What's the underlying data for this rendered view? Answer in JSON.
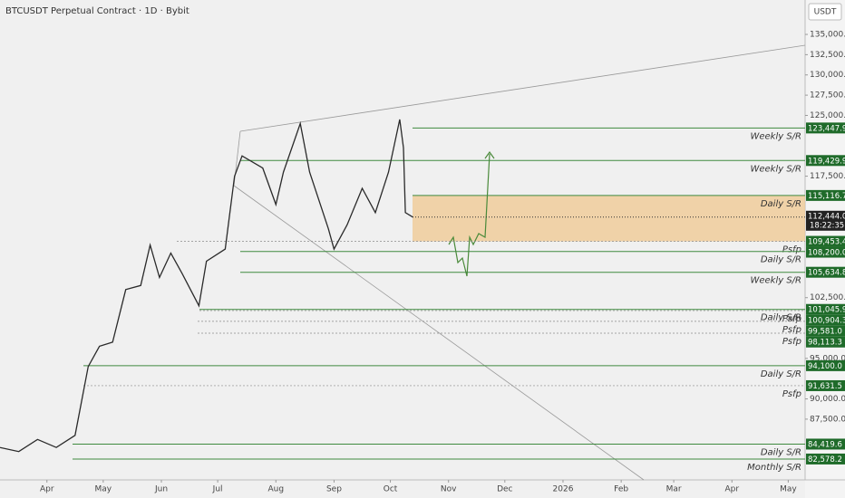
{
  "chart_data": {
    "type": "line",
    "title": "BTCUSDT Perpetual Contract · 1D · Bybit",
    "currency": "USDT",
    "color": "#2a2a2a",
    "x": [
      -25,
      -15,
      -5,
      5,
      15,
      22,
      28,
      35,
      42,
      50,
      55,
      60,
      66,
      72,
      81,
      85,
      95,
      100,
      104,
      115,
      122,
      126,
      135,
      140,
      150,
      153,
      160,
      168,
      175,
      182,
      188,
      190,
      191,
      195
    ],
    "values": [
      84000,
      83500,
      85000,
      84000,
      85500,
      94000,
      96500,
      97000,
      103500,
      104000,
      109000,
      105000,
      108000,
      105500,
      101500,
      107000,
      108500,
      117500,
      120000,
      118500,
      114000,
      118000,
      124000,
      118000,
      111000,
      108500,
      111500,
      116000,
      113000,
      118000,
      124500,
      121000,
      113000,
      112444
    ],
    "xlim": [
      -25,
      404
    ],
    "xticks": [
      {
        "value": 0,
        "label": "Apr"
      },
      {
        "value": 30,
        "label": "May"
      },
      {
        "value": 61,
        "label": "Jun"
      },
      {
        "value": 91,
        "label": "Jul"
      },
      {
        "value": 122,
        "label": "Aug"
      },
      {
        "value": 153,
        "label": "Sep"
      },
      {
        "value": 183,
        "label": "Oct"
      },
      {
        "value": 214,
        "label": "Nov"
      },
      {
        "value": 244,
        "label": "Dec"
      },
      {
        "value": 275,
        "label": "2026"
      },
      {
        "value": 306,
        "label": "Feb"
      },
      {
        "value": 334,
        "label": "Mar"
      },
      {
        "value": 365,
        "label": "Apr"
      },
      {
        "value": 395,
        "label": "May"
      }
    ],
    "ylim": [
      80000,
      139250
    ],
    "yticks": [
      {
        "value": 135000,
        "label": "135,000.0"
      },
      {
        "value": 132500,
        "label": "132,500.0"
      },
      {
        "value": 130000,
        "label": "130,000.0"
      },
      {
        "value": 127500,
        "label": "127,500.0"
      },
      {
        "value": 125000,
        "label": "125,000.0"
      },
      {
        "value": 117500,
        "label": "117,500.0"
      },
      {
        "value": 102500,
        "label": "102,500.0"
      },
      {
        "value": 95000,
        "label": "95,000.0"
      },
      {
        "value": 90000,
        "label": "90,000.0"
      },
      {
        "value": 87500,
        "label": "87,500.0"
      }
    ],
    "current_price": {
      "value": 112444,
      "label": "112,444.0"
    },
    "countdown": "18:22:35",
    "levels": [
      {
        "price": {
          "value": 123447.9,
          "label": "123,447.9"
        },
        "name": "Weekly S/R"
      },
      {
        "price": {
          "value": 119429.9,
          "label": "119,429.9"
        },
        "name": "Weekly S/R"
      },
      {
        "price": {
          "value": 115116.7,
          "label": "115,116.7"
        },
        "name": "Daily S/R"
      },
      {
        "price": {
          "value": 109453.4,
          "label": "109,453.4"
        },
        "name": "Psfp"
      },
      {
        "price": {
          "value": 108200.0,
          "label": "108,200.0"
        },
        "name": "Daily S/R"
      },
      {
        "price": {
          "value": 105634.8,
          "label": "105,634.8"
        },
        "name": "Weekly S/R"
      },
      {
        "price": {
          "value": 101045.9,
          "label": "101,045.9"
        },
        "name": "Daily S/R"
      },
      {
        "price": {
          "value": 100904.3,
          "label": "100,904.3"
        },
        "name": "Psfp"
      },
      {
        "price": {
          "value": 99581.0,
          "label": "99,581.0"
        },
        "name": "Psfp"
      },
      {
        "price": {
          "value": 98113.3,
          "label": "98,113.3"
        },
        "name": "Psfp"
      },
      {
        "price": {
          "value": 94100.0,
          "label": "94,100.0"
        },
        "name": "Daily S/R"
      },
      {
        "price": {
          "value": 91631.5,
          "label": "91,631.5"
        },
        "name": "Psfp"
      },
      {
        "price": {
          "value": 84419.6,
          "label": "84,419.6"
        },
        "name": "Daily S/R"
      },
      {
        "price": {
          "value": 82578.2,
          "label": "82,578.2"
        },
        "name": "Monthly S/R"
      }
    ]
  }
}
